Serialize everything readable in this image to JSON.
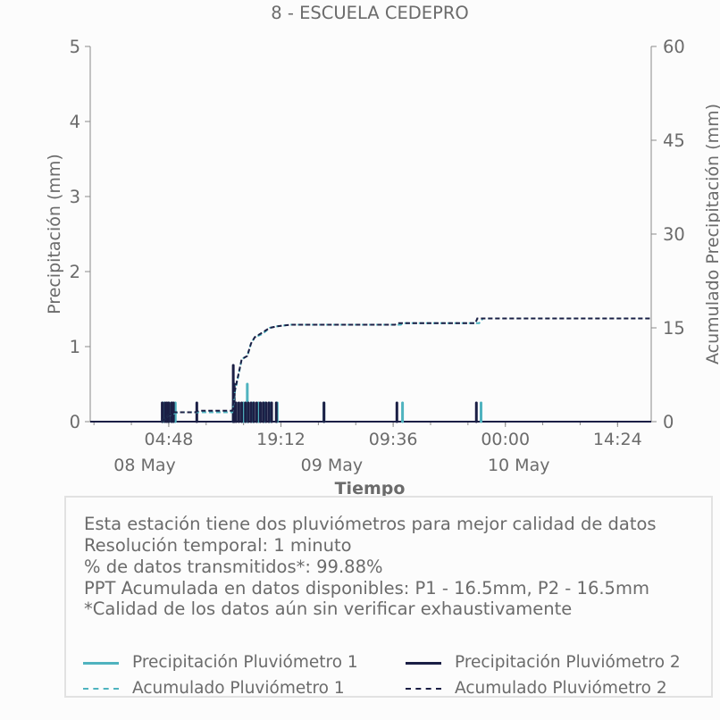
{
  "chart_data": {
    "type": "bar+line",
    "title": "8 - ESCUELA CEDEPRO",
    "xlabel": "Tiempo",
    "ylabel_left": "Precipitación (mm)",
    "ylabel_right": "Acumulado Precipitación (mm)",
    "ylim_left": [
      0,
      5
    ],
    "ylim_right": [
      0,
      60
    ],
    "yticks_left": [
      "0",
      "1",
      "2",
      "3",
      "4",
      "5"
    ],
    "yticks_right": [
      "0",
      "15",
      "30",
      "45",
      "60"
    ],
    "x_tick_labels": [
      {
        "t": 0.2,
        "time": "04:48",
        "date": "08 May"
      },
      {
        "t": 0.8,
        "time": "19:12",
        "date": ""
      },
      {
        "t": 1.4,
        "time": "09:36",
        "date": "09 May"
      },
      {
        "t": 2.0,
        "time": "00:00",
        "date": "10 May"
      },
      {
        "t": 2.6,
        "time": "14:24",
        "date": ""
      }
    ],
    "x_date_labels": [
      {
        "t": 0.0,
        "label": "08 May"
      },
      {
        "t": 1.0,
        "label": "09 May"
      },
      {
        "t": 2.0,
        "label": "10 May"
      }
    ],
    "xlim_days": [
      -0.22,
      2.78
    ],
    "grid": false,
    "series": [
      {
        "name": "Precipitación Pluviómetro 1",
        "style": "bar",
        "axis": "left",
        "color": "#4fb3bf",
        "points": [
          [
            0.17,
            0.25
          ],
          [
            0.2,
            0.25
          ],
          [
            0.215,
            0.25
          ],
          [
            0.235,
            0.25
          ],
          [
            0.545,
            0.25
          ],
          [
            0.6,
            0.25
          ],
          [
            0.62,
            0.5
          ],
          [
            0.65,
            0.25
          ],
          [
            0.68,
            0.25
          ],
          [
            0.71,
            0.25
          ],
          [
            0.74,
            0.25
          ],
          [
            0.78,
            0.25
          ],
          [
            1.03,
            0.25
          ],
          [
            1.45,
            0.25
          ],
          [
            1.87,
            0.25
          ]
        ]
      },
      {
        "name": "Precipitación Pluviómetro 2",
        "style": "bar",
        "axis": "left",
        "color": "#1b1f45",
        "points": [
          [
            0.165,
            0.25
          ],
          [
            0.18,
            0.25
          ],
          [
            0.19,
            0.25
          ],
          [
            0.2,
            0.25
          ],
          [
            0.215,
            0.25
          ],
          [
            0.225,
            0.25
          ],
          [
            0.35,
            0.25
          ],
          [
            0.545,
            0.75
          ],
          [
            0.55,
            0.5
          ],
          [
            0.56,
            0.25
          ],
          [
            0.575,
            0.25
          ],
          [
            0.59,
            0.25
          ],
          [
            0.61,
            0.25
          ],
          [
            0.625,
            0.25
          ],
          [
            0.64,
            0.25
          ],
          [
            0.655,
            0.25
          ],
          [
            0.67,
            0.25
          ],
          [
            0.69,
            0.25
          ],
          [
            0.705,
            0.25
          ],
          [
            0.72,
            0.25
          ],
          [
            0.735,
            0.25
          ],
          [
            0.75,
            0.25
          ],
          [
            0.775,
            0.25
          ],
          [
            1.03,
            0.25
          ],
          [
            1.42,
            0.25
          ],
          [
            1.845,
            0.25
          ]
        ]
      },
      {
        "name": "Acumulado Pluviómetro 1",
        "style": "dashed",
        "axis": "right",
        "color": "#4fb3bf",
        "points": [
          [
            -0.22,
            0
          ],
          [
            0.16,
            0
          ],
          [
            0.2,
            1.0
          ],
          [
            0.25,
            1.5
          ],
          [
            0.34,
            1.5
          ],
          [
            0.36,
            1.5
          ],
          [
            0.54,
            1.5
          ],
          [
            0.555,
            5.0
          ],
          [
            0.57,
            7.0
          ],
          [
            0.59,
            10.0
          ],
          [
            0.62,
            10.5
          ],
          [
            0.64,
            12.5
          ],
          [
            0.66,
            13.5
          ],
          [
            0.7,
            14.0
          ],
          [
            0.74,
            15.0
          ],
          [
            0.78,
            15.25
          ],
          [
            0.85,
            15.5
          ],
          [
            1.44,
            15.5
          ],
          [
            1.46,
            15.75
          ],
          [
            1.86,
            15.75
          ],
          [
            1.88,
            16.5
          ],
          [
            2.78,
            16.5
          ]
        ]
      },
      {
        "name": "Acumulado Pluviómetro 2",
        "style": "dashed",
        "axis": "right",
        "color": "#1b1f45",
        "points": [
          [
            -0.22,
            0
          ],
          [
            0.16,
            0
          ],
          [
            0.2,
            1.0
          ],
          [
            0.23,
            1.5
          ],
          [
            0.34,
            1.5
          ],
          [
            0.36,
            1.75
          ],
          [
            0.54,
            1.75
          ],
          [
            0.55,
            4.5
          ],
          [
            0.565,
            6.5
          ],
          [
            0.59,
            10.0
          ],
          [
            0.62,
            10.5
          ],
          [
            0.64,
            12.5
          ],
          [
            0.66,
            13.5
          ],
          [
            0.7,
            14.25
          ],
          [
            0.74,
            15.0
          ],
          [
            0.78,
            15.25
          ],
          [
            0.85,
            15.5
          ],
          [
            1.41,
            15.5
          ],
          [
            1.43,
            15.75
          ],
          [
            1.84,
            15.75
          ],
          [
            1.85,
            16.5
          ],
          [
            2.78,
            16.5
          ]
        ]
      }
    ]
  },
  "info": {
    "line1": "Esta estación tiene dos pluviómetros para mejor calidad de datos",
    "line2": "Resolución temporal: 1 minuto",
    "line3": "% de datos transmitidos*: 99.88%",
    "line4": "PPT Acumulada en datos disponibles: P1 - 16.5mm, P2 - 16.5mm",
    "line5": "*Calidad de los datos aún sin verificar exhaustivamente"
  },
  "legend": {
    "items": [
      {
        "label": "Precipitación Pluviómetro 1",
        "color": "#4fb3bf",
        "style": "solid"
      },
      {
        "label": "Precipitación Pluviómetro 2",
        "color": "#1b1f45",
        "style": "solid"
      },
      {
        "label": "Acumulado Pluviómetro 1",
        "color": "#4fb3bf",
        "style": "dashed"
      },
      {
        "label": "Acumulado Pluviómetro 2",
        "color": "#1b1f45",
        "style": "dashed"
      }
    ]
  }
}
